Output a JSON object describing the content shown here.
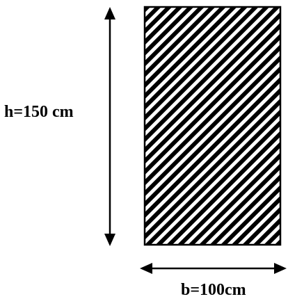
{
  "diagram": {
    "height_label": "h=150 cm",
    "width_label": "b=100cm",
    "shape": "rectangle",
    "fill_pattern": "diagonal-hatch",
    "stroke_color": "#000000",
    "fill_color": "#ffffff"
  }
}
